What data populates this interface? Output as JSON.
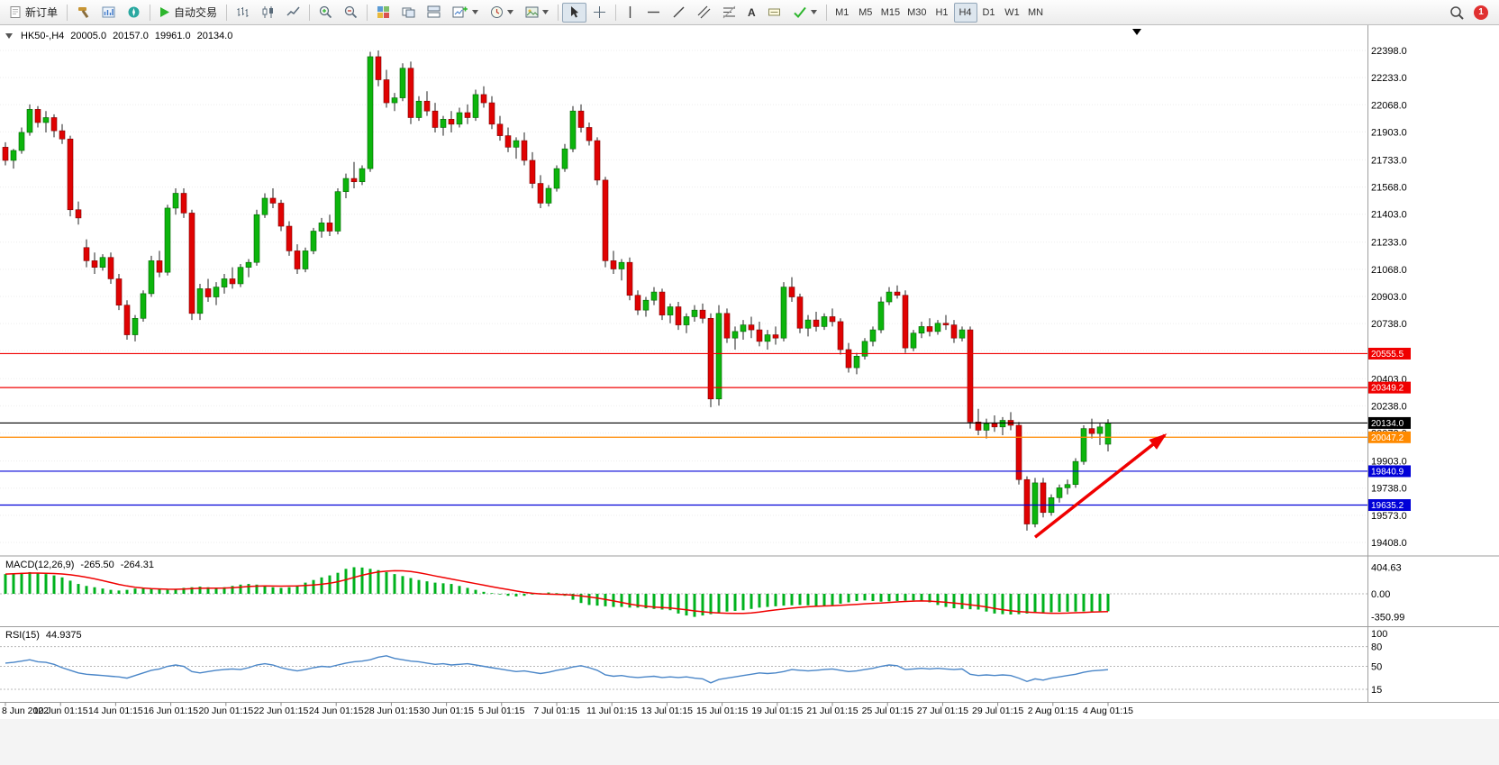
{
  "toolbar": {
    "new_order": "新订单",
    "autotrading": "自动交易",
    "text_tool_glyph": "A",
    "timeframes": [
      "M1",
      "M5",
      "M15",
      "M30",
      "H1",
      "H4",
      "D1",
      "W1",
      "MN"
    ],
    "active_timeframe": "H4",
    "notification_count": "1"
  },
  "legend": {
    "symbol": "HK50-,H4",
    "open": "20005.0",
    "high": "20157.0",
    "low": "19961.0",
    "close": "20134.0"
  },
  "indicators": {
    "macd": {
      "label": "MACD(12,26,9)",
      "value_main": "-265.50",
      "value_signal": "-264.31"
    },
    "rsi": {
      "label": "RSI(15)",
      "value": "44.9375"
    }
  },
  "chart_data": [
    {
      "type": "candlestick",
      "title": "HK50-,H4",
      "x_labels": [
        "8 Jun 2022",
        "10 Jun 01:15",
        "14 Jun 01:15",
        "16 Jun 01:15",
        "20 Jun 01:15",
        "22 Jun 01:15",
        "24 Jun 01:15",
        "28 Jun 01:15",
        "30 Jun 01:15",
        "5 Jul 01:15",
        "7 Jul 01:15",
        "11 Jul 01:15",
        "13 Jul 01:15",
        "15 Jul 01:15",
        "19 Jul 01:15",
        "21 Jul 01:15",
        "25 Jul 01:15",
        "27 Jul 01:15",
        "29 Jul 01:15",
        "2 Aug 01:15",
        "4 Aug 01:15"
      ],
      "y_ticks": [
        "22398.0",
        "22233.0",
        "22068.0",
        "21903.0",
        "21733.0",
        "21568.0",
        "21403.0",
        "21233.0",
        "21068.0",
        "20903.0",
        "20738.0",
        "20573.0",
        "20403.0",
        "20238.0",
        "20073.0",
        "19903.0",
        "19738.0",
        "19573.0",
        "19408.0"
      ],
      "y_range": [
        19408,
        22398
      ],
      "up_color": "#0cb50c",
      "down_color": "#e00202",
      "candles": [
        [
          21810,
          21840,
          21700,
          21730
        ],
        [
          21730,
          21800,
          21680,
          21790
        ],
        [
          21790,
          21930,
          21770,
          21900
        ],
        [
          21900,
          22070,
          21880,
          22040
        ],
        [
          22040,
          22060,
          21930,
          21960
        ],
        [
          21960,
          22030,
          21900,
          21990
        ],
        [
          21990,
          22010,
          21870,
          21910
        ],
        [
          21910,
          21950,
          21830,
          21860
        ],
        [
          21860,
          21880,
          21390,
          21430
        ],
        [
          21430,
          21480,
          21340,
          21380
        ],
        [
          21200,
          21250,
          21080,
          21120
        ],
        [
          21120,
          21170,
          21040,
          21080
        ],
        [
          21080,
          21160,
          21060,
          21140
        ],
        [
          21140,
          21170,
          20980,
          21010
        ],
        [
          21010,
          21040,
          20820,
          20850
        ],
        [
          20850,
          20880,
          20640,
          20670
        ],
        [
          20670,
          20790,
          20630,
          20770
        ],
        [
          20770,
          20940,
          20750,
          20920
        ],
        [
          20920,
          21150,
          20900,
          21120
        ],
        [
          21120,
          21180,
          21020,
          21050
        ],
        [
          21050,
          21460,
          21030,
          21440
        ],
        [
          21440,
          21560,
          21400,
          21530
        ],
        [
          21530,
          21560,
          21380,
          21410
        ],
        [
          21410,
          21430,
          20760,
          20800
        ],
        [
          20800,
          20980,
          20760,
          20950
        ],
        [
          20950,
          21010,
          20870,
          20900
        ],
        [
          20900,
          20990,
          20850,
          20960
        ],
        [
          20960,
          21040,
          20920,
          21010
        ],
        [
          21010,
          21080,
          20950,
          20980
        ],
        [
          20980,
          21100,
          20960,
          21080
        ],
        [
          21080,
          21130,
          21020,
          21110
        ],
        [
          21110,
          21430,
          21090,
          21400
        ],
        [
          21400,
          21530,
          21380,
          21500
        ],
        [
          21500,
          21560,
          21440,
          21470
        ],
        [
          21470,
          21490,
          21300,
          21330
        ],
        [
          21330,
          21360,
          21150,
          21180
        ],
        [
          21180,
          21220,
          21040,
          21070
        ],
        [
          21070,
          21200,
          21050,
          21180
        ],
        [
          21180,
          21320,
          21160,
          21300
        ],
        [
          21300,
          21380,
          21260,
          21350
        ],
        [
          21350,
          21400,
          21270,
          21300
        ],
        [
          21300,
          21560,
          21280,
          21540
        ],
        [
          21540,
          21650,
          21500,
          21620
        ],
        [
          21620,
          21720,
          21560,
          21600
        ],
        [
          21600,
          21700,
          21580,
          21680
        ],
        [
          21680,
          22390,
          21660,
          22360
        ],
        [
          22360,
          22398,
          22180,
          22220
        ],
        [
          22220,
          22280,
          22050,
          22080
        ],
        [
          22080,
          22140,
          22030,
          22110
        ],
        [
          22110,
          22320,
          22090,
          22290
        ],
        [
          22290,
          22330,
          21950,
          21990
        ],
        [
          21990,
          22120,
          21970,
          22090
        ],
        [
          22090,
          22150,
          22000,
          22030
        ],
        [
          22030,
          22080,
          21900,
          21930
        ],
        [
          21930,
          22000,
          21880,
          21980
        ],
        [
          21980,
          22030,
          21900,
          21950
        ],
        [
          21950,
          22050,
          21930,
          22020
        ],
        [
          22020,
          22070,
          21950,
          21990
        ],
        [
          21990,
          22160,
          21970,
          22130
        ],
        [
          22130,
          22180,
          22050,
          22080
        ],
        [
          22080,
          22120,
          21920,
          21950
        ],
        [
          21950,
          22000,
          21850,
          21880
        ],
        [
          21880,
          21930,
          21780,
          21810
        ],
        [
          21810,
          21870,
          21740,
          21850
        ],
        [
          21850,
          21900,
          21700,
          21730
        ],
        [
          21730,
          21780,
          21560,
          21590
        ],
        [
          21590,
          21640,
          21440,
          21470
        ],
        [
          21470,
          21580,
          21450,
          21560
        ],
        [
          21560,
          21700,
          21540,
          21680
        ],
        [
          21680,
          21830,
          21660,
          21800
        ],
        [
          21800,
          22060,
          21780,
          22030
        ],
        [
          22030,
          22070,
          21900,
          21930
        ],
        [
          21930,
          21960,
          21820,
          21850
        ],
        [
          21850,
          21870,
          21580,
          21610
        ],
        [
          21610,
          21630,
          21080,
          21120
        ],
        [
          21120,
          21180,
          21040,
          21070
        ],
        [
          21070,
          21130,
          21000,
          21110
        ],
        [
          21110,
          21140,
          20880,
          20910
        ],
        [
          20910,
          20940,
          20790,
          20820
        ],
        [
          20820,
          20900,
          20780,
          20880
        ],
        [
          20880,
          20960,
          20850,
          20930
        ],
        [
          20930,
          20950,
          20760,
          20790
        ],
        [
          20790,
          20860,
          20740,
          20840
        ],
        [
          20840,
          20870,
          20700,
          20730
        ],
        [
          20730,
          20800,
          20680,
          20780
        ],
        [
          20780,
          20850,
          20750,
          20820
        ],
        [
          20820,
          20860,
          20740,
          20770
        ],
        [
          20770,
          20800,
          20230,
          20280
        ],
        [
          20280,
          20850,
          20240,
          20800
        ],
        [
          20800,
          20830,
          20620,
          20650
        ],
        [
          20650,
          20720,
          20580,
          20690
        ],
        [
          20690,
          20760,
          20640,
          20730
        ],
        [
          20730,
          20780,
          20650,
          20700
        ],
        [
          20700,
          20750,
          20600,
          20630
        ],
        [
          20630,
          20700,
          20580,
          20670
        ],
        [
          20670,
          20720,
          20610,
          20650
        ],
        [
          20650,
          20990,
          20630,
          20960
        ],
        [
          20960,
          21020,
          20870,
          20900
        ],
        [
          20900,
          20920,
          20680,
          20710
        ],
        [
          20710,
          20790,
          20660,
          20760
        ],
        [
          20760,
          20810,
          20690,
          20720
        ],
        [
          20720,
          20800,
          20700,
          20780
        ],
        [
          20780,
          20830,
          20720,
          20750
        ],
        [
          20750,
          20770,
          20550,
          20580
        ],
        [
          20580,
          20620,
          20440,
          20470
        ],
        [
          20470,
          20560,
          20430,
          20540
        ],
        [
          20540,
          20650,
          20520,
          20630
        ],
        [
          20630,
          20720,
          20600,
          20700
        ],
        [
          20700,
          20900,
          20680,
          20870
        ],
        [
          20870,
          20960,
          20850,
          20930
        ],
        [
          20930,
          20970,
          20890,
          20910
        ],
        [
          20910,
          20940,
          20560,
          20590
        ],
        [
          20590,
          20700,
          20570,
          20680
        ],
        [
          20680,
          20750,
          20650,
          20720
        ],
        [
          20720,
          20770,
          20660,
          20690
        ],
        [
          20690,
          20760,
          20670,
          20740
        ],
        [
          20740,
          20790,
          20700,
          20730
        ],
        [
          20730,
          20760,
          20620,
          20650
        ],
        [
          20650,
          20720,
          20630,
          20700
        ],
        [
          20700,
          20720,
          20100,
          20140
        ],
        [
          20140,
          20220,
          20060,
          20090
        ],
        [
          20090,
          20160,
          20040,
          20130
        ],
        [
          20130,
          20180,
          20080,
          20110
        ],
        [
          20110,
          20170,
          20060,
          20150
        ],
        [
          20150,
          20200,
          20090,
          20120
        ],
        [
          20120,
          20140,
          19760,
          19790
        ],
        [
          19790,
          19810,
          19480,
          19520
        ],
        [
          19520,
          19800,
          19500,
          19770
        ],
        [
          19770,
          19800,
          19560,
          19590
        ],
        [
          19590,
          19700,
          19570,
          19680
        ],
        [
          19680,
          19760,
          19650,
          19740
        ],
        [
          19740,
          19790,
          19700,
          19760
        ],
        [
          19760,
          19920,
          19740,
          19900
        ],
        [
          19900,
          20120,
          19880,
          20100
        ],
        [
          20100,
          20160,
          20040,
          20070
        ],
        [
          20070,
          20130,
          20000,
          20110
        ],
        [
          20005,
          20157,
          19961,
          20134
        ]
      ],
      "hlines": [
        {
          "price": 20555.5,
          "label": "20555.5",
          "color": "#f00000"
        },
        {
          "price": 20349.2,
          "label": "20349.2",
          "color": "#f00000"
        },
        {
          "price": 20134.0,
          "label": "20134.0",
          "color": "#000000"
        },
        {
          "price": 20047.2,
          "label": "20047.2",
          "color": "#ff8a00"
        },
        {
          "price": 19840.9,
          "label": "19840.9",
          "color": "#0000d8"
        },
        {
          "price": 19635.2,
          "label": "19635.2",
          "color": "#0000d8"
        }
      ],
      "arrow": {
        "from": {
          "i": 127,
          "price": 19440
        },
        "to": {
          "i": 143,
          "price": 20060
        },
        "color": "#f00000"
      }
    },
    {
      "type": "bar",
      "title": "MACD",
      "y_ticks": [
        "404.63",
        "0.00",
        "-350.99"
      ],
      "y_range": [
        -350.99,
        404.63
      ],
      "hist_color": "#00b21e",
      "signal_color": "#f00000",
      "values": [
        300,
        310,
        320,
        330,
        320,
        300,
        280,
        250,
        200,
        150,
        120,
        100,
        80,
        60,
        50,
        60,
        80,
        90,
        80,
        70,
        60,
        70,
        90,
        100,
        110,
        100,
        90,
        100,
        120,
        140,
        150,
        140,
        120,
        100,
        90,
        100,
        130,
        170,
        210,
        250,
        280,
        320,
        380,
        404.63,
        400,
        380,
        360,
        330,
        300,
        270,
        240,
        210,
        190,
        170,
        160,
        150,
        120,
        90,
        60,
        30,
        10,
        -10,
        -30,
        -40,
        -30,
        -10,
        10,
        20,
        10,
        -30,
        -90,
        -140,
        -170,
        -180,
        -190,
        -200,
        -200,
        -210,
        -210,
        -220,
        -230,
        -240,
        -250,
        -300,
        -330,
        -350.99,
        -330,
        -310,
        -290,
        -270,
        -260,
        -250,
        -230,
        -210,
        -200,
        -190,
        -180,
        -175,
        -170,
        -175,
        -185,
        -180,
        -170,
        -150,
        -130,
        -110,
        -100,
        -110,
        -120,
        -115,
        -110,
        -105,
        -100,
        -110,
        -130,
        -170,
        -200,
        -220,
        -230,
        -235,
        -240,
        -270,
        -300,
        -310,
        -315,
        -310,
        -300,
        -290,
        -285,
        -280,
        -275,
        -272,
        -270,
        -268,
        -267,
        -266,
        -265.5
      ]
    },
    {
      "type": "line",
      "title": "RSI",
      "y_ticks": [
        "100",
        "80",
        "50",
        "15"
      ],
      "y_range": [
        0,
        100
      ],
      "levels": [
        80,
        50,
        15
      ],
      "color": "#4a86c8",
      "values": [
        55,
        56,
        58,
        60,
        57,
        56,
        53,
        48,
        44,
        40,
        38,
        37,
        36,
        35,
        34,
        32,
        36,
        40,
        44,
        46,
        50,
        52,
        50,
        42,
        40,
        42,
        44,
        45,
        46,
        45,
        48,
        52,
        54,
        52,
        48,
        45,
        43,
        45,
        48,
        50,
        49,
        52,
        55,
        57,
        58,
        60,
        64,
        66,
        62,
        60,
        58,
        57,
        55,
        53,
        54,
        52,
        53,
        54,
        52,
        50,
        48,
        46,
        44,
        42,
        43,
        41,
        39,
        41,
        44,
        46,
        49,
        51,
        48,
        44,
        37,
        35,
        36,
        34,
        33,
        34,
        35,
        33,
        34,
        33,
        34,
        32,
        31,
        25,
        30,
        32,
        34,
        36,
        38,
        40,
        39,
        40,
        42,
        45,
        44,
        43,
        44,
        45,
        46,
        44,
        42,
        43,
        45,
        47,
        50,
        52,
        51,
        45,
        46,
        47,
        46,
        47,
        46,
        45,
        46,
        38,
        36,
        37,
        36,
        37,
        36,
        32,
        27,
        31,
        29,
        32,
        34,
        36,
        38,
        41,
        43,
        44,
        44.94
      ]
    }
  ]
}
